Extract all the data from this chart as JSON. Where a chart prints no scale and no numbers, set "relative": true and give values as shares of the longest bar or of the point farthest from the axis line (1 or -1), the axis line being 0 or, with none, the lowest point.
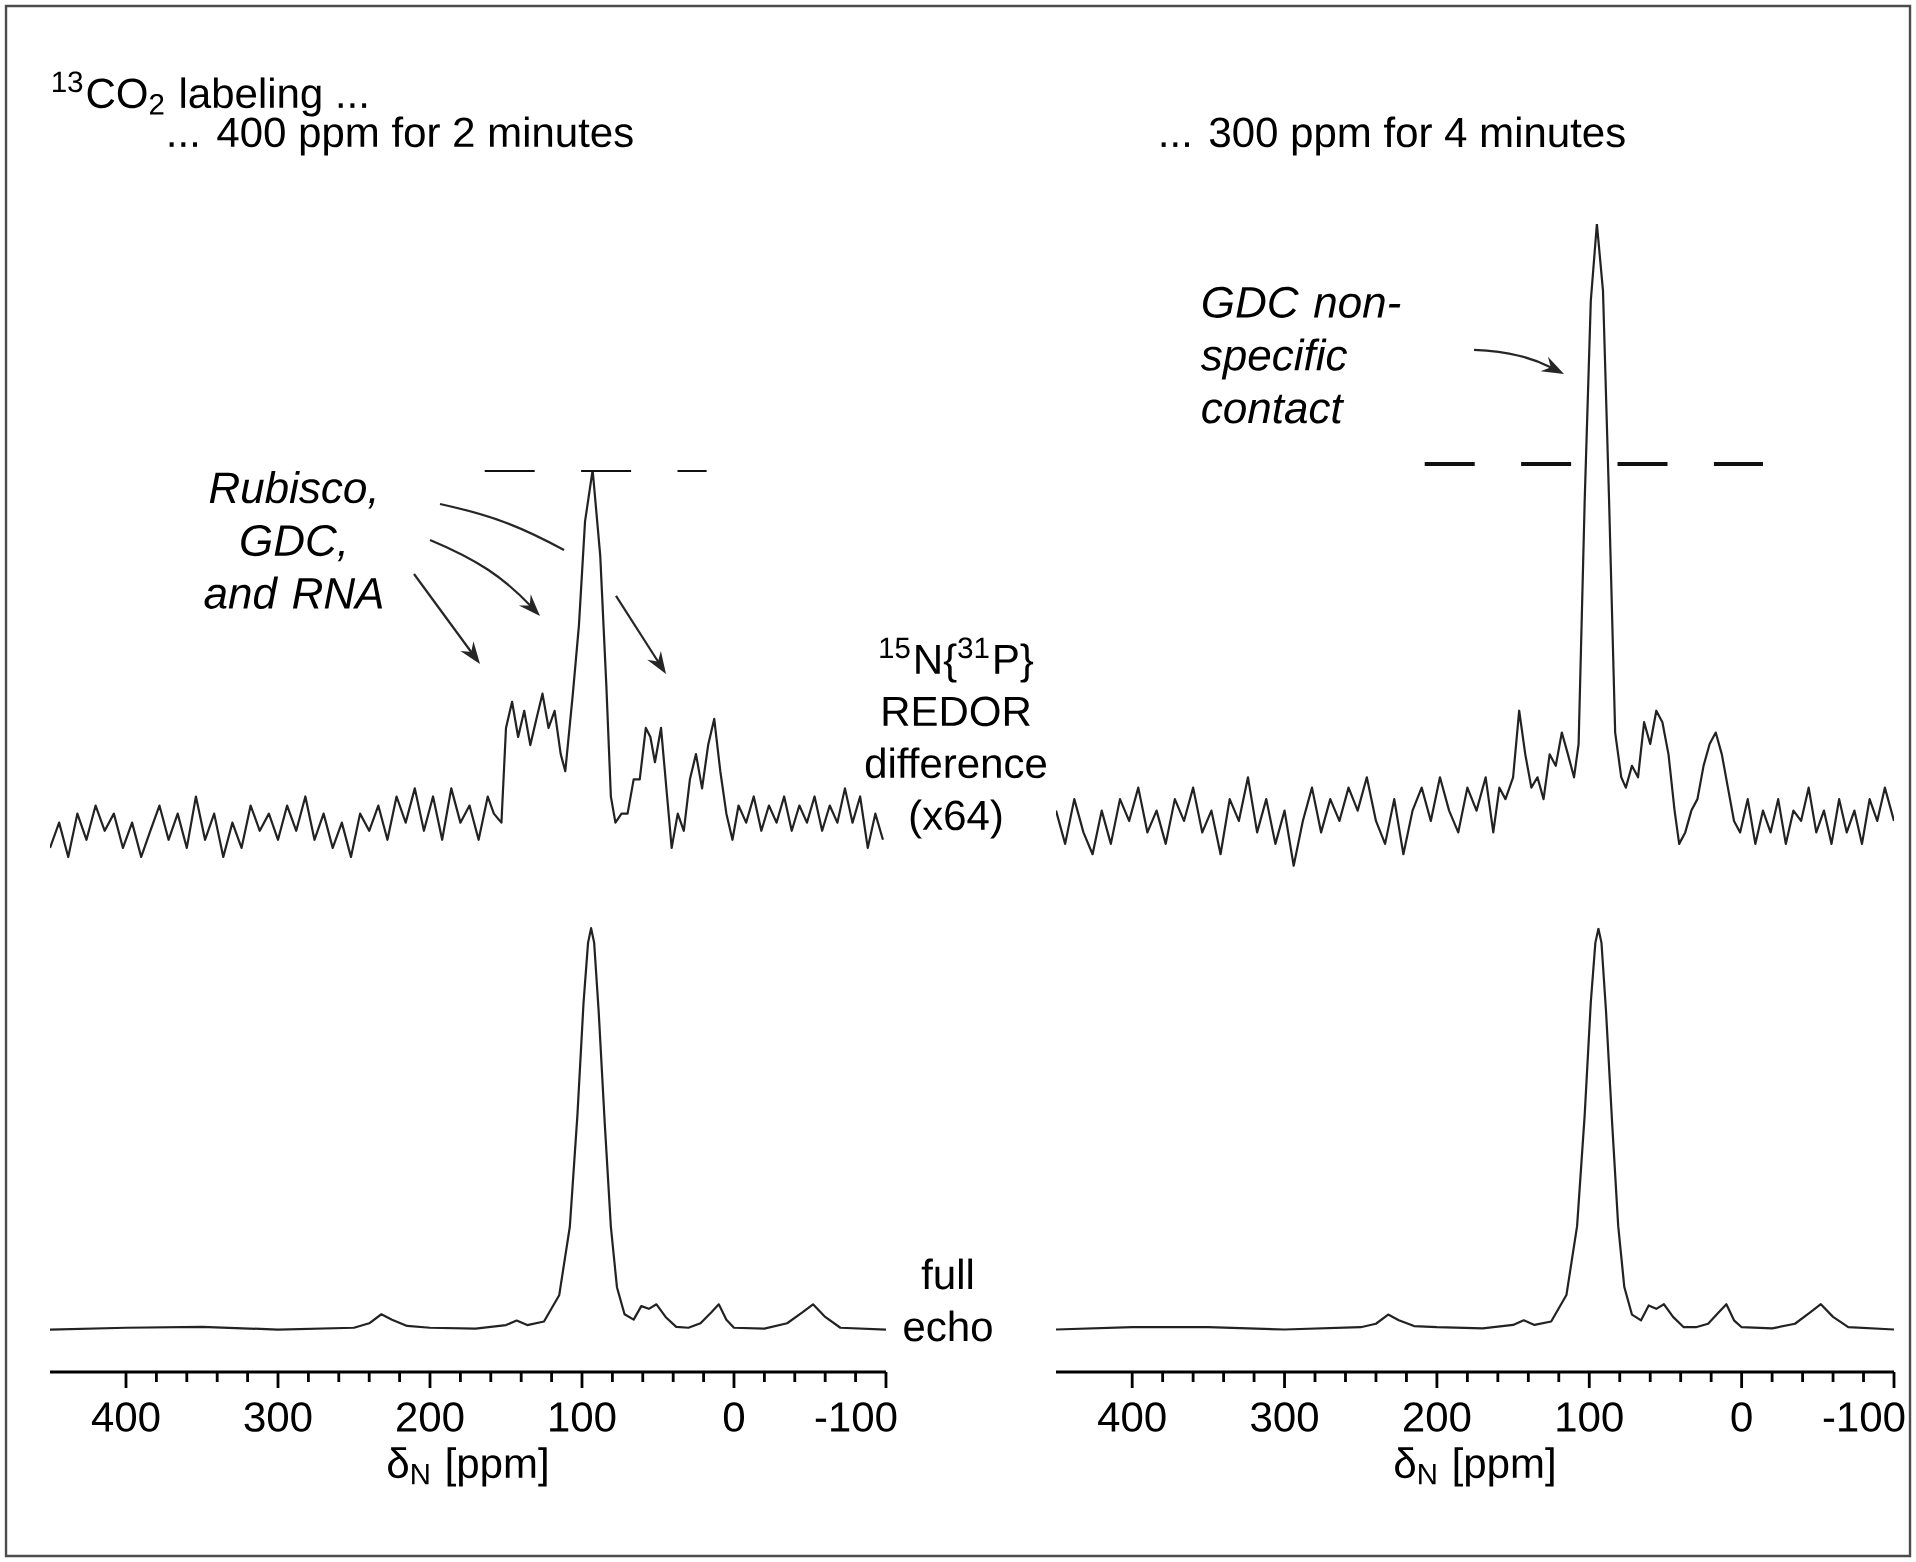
{
  "chart_data": [
    {
      "type": "line",
      "title": "... 400 ppm for 2 minutes",
      "xlabel": "δ$_{N}$ [ppm]",
      "relative": true,
      "xlim": [
        450,
        -100
      ],
      "xticks": [
        400,
        300,
        200,
        100,
        0,
        -100
      ],
      "annotations": [
        "$^{13}$CO$_{2}$ labeling ...",
        "Rubisco, GDC, and RNA",
        "$^{15}$N{$^{31}$P} REDOR difference (x64)",
        "full echo"
      ],
      "series": [
        {
          "color": "#222222",
          "x": [
            450,
            444,
            438,
            432,
            426,
            420,
            414,
            408,
            402,
            396,
            390,
            384,
            378,
            372,
            366,
            360,
            354,
            348,
            342,
            336,
            330,
            324,
            318,
            312,
            306,
            300,
            294,
            288,
            282,
            276,
            270,
            264,
            258,
            252,
            246,
            240,
            234,
            228,
            222,
            216,
            210,
            204,
            198,
            192,
            186,
            180,
            174,
            168,
            162,
            158,
            153,
            150,
            146,
            142,
            138,
            134,
            130,
            126,
            122,
            118,
            114,
            111,
            106,
            102,
            98,
            93,
            88,
            84,
            81,
            78,
            74,
            70,
            66,
            62,
            58,
            55,
            52,
            48,
            44,
            41,
            37,
            33,
            29,
            25,
            21,
            17,
            13,
            9,
            5,
            1,
            -3,
            -8,
            -13,
            -18,
            -23,
            -28,
            -33,
            -38,
            -43,
            -48,
            -53,
            -58,
            -63,
            -68,
            -73,
            -78,
            -83,
            -88,
            -93,
            -98
          ],
          "values": [
            0.581,
            0.609,
            0.571,
            0.619,
            0.59,
            0.628,
            0.6,
            0.619,
            0.581,
            0.609,
            0.571,
            0.6,
            0.628,
            0.59,
            0.619,
            0.581,
            0.638,
            0.59,
            0.619,
            0.571,
            0.609,
            0.581,
            0.628,
            0.6,
            0.619,
            0.59,
            0.628,
            0.6,
            0.638,
            0.59,
            0.619,
            0.581,
            0.609,
            0.571,
            0.619,
            0.6,
            0.628,
            0.59,
            0.638,
            0.609,
            0.647,
            0.6,
            0.638,
            0.59,
            0.647,
            0.609,
            0.628,
            0.59,
            0.638,
            0.619,
            0.609,
            0.714,
            0.743,
            0.704,
            0.733,
            0.695,
            0.724,
            0.752,
            0.714,
            0.733,
            0.685,
            0.666,
            0.752,
            0.828,
            0.943,
            1.0,
            0.905,
            0.762,
            0.638,
            0.609,
            0.619,
            0.619,
            0.657,
            0.657,
            0.714,
            0.704,
            0.676,
            0.714,
            0.638,
            0.581,
            0.619,
            0.6,
            0.657,
            0.685,
            0.647,
            0.695,
            0.724,
            0.666,
            0.619,
            0.59,
            0.628,
            0.609,
            0.638,
            0.6,
            0.628,
            0.609,
            0.638,
            0.6,
            0.628,
            0.609,
            0.638,
            0.6,
            0.628,
            0.609,
            0.647,
            0.609,
            0.638,
            0.581,
            0.619,
            0.59
          ]
        },
        {
          "color": "#222222",
          "x": [
            450,
            400,
            350,
            300,
            250,
            240,
            232,
            225,
            215,
            200,
            170,
            150,
            143,
            136,
            125,
            115,
            108,
            103,
            99,
            96,
            94,
            92,
            89,
            85,
            81,
            77,
            72,
            66,
            61,
            56,
            51,
            45,
            38,
            30,
            22,
            15,
            10,
            5,
            0,
            -20,
            -35,
            -45,
            -52,
            -60,
            -70,
            -100
          ],
          "values": [
            0.047,
            0.049,
            0.05,
            0.047,
            0.049,
            0.054,
            0.064,
            0.058,
            0.051,
            0.049,
            0.048,
            0.052,
            0.057,
            0.052,
            0.056,
            0.085,
            0.161,
            0.285,
            0.409,
            0.476,
            0.492,
            0.476,
            0.399,
            0.275,
            0.161,
            0.094,
            0.064,
            0.058,
            0.073,
            0.07,
            0.075,
            0.061,
            0.05,
            0.049,
            0.054,
            0.066,
            0.075,
            0.058,
            0.049,
            0.048,
            0.054,
            0.066,
            0.075,
            0.061,
            0.049,
            0.047
          ]
        },
        {
          "color": "#111111",
          "line_style": "dashed",
          "x": [
            164,
            18
          ],
          "values": [
            1.0,
            1.0
          ]
        }
      ]
    },
    {
      "type": "line",
      "title": "... 300 ppm for 4 minutes",
      "xlabel": "δ$_{N}$ [ppm]",
      "relative": true,
      "xlim": [
        450,
        -100
      ],
      "xticks": [
        400,
        300,
        200,
        100,
        0,
        -100
      ],
      "annotations": [
        "GDC non-specific contact"
      ],
      "series": [
        {
          "color": "#222222",
          "x": [
            450,
            444,
            438,
            432,
            426,
            420,
            414,
            408,
            402,
            396,
            390,
            384,
            378,
            372,
            366,
            360,
            354,
            348,
            342,
            336,
            330,
            324,
            318,
            312,
            306,
            300,
            294,
            288,
            282,
            276,
            270,
            264,
            258,
            252,
            246,
            240,
            234,
            228,
            222,
            216,
            210,
            204,
            198,
            192,
            186,
            180,
            174,
            168,
            163,
            159,
            155,
            150,
            146,
            142,
            138,
            134,
            130,
            126,
            122,
            118,
            114,
            110,
            107,
            103,
            99,
            95,
            91,
            87,
            83,
            79,
            76,
            72,
            68,
            64,
            60,
            56,
            52,
            48,
            44,
            41,
            37,
            33,
            29,
            25,
            21,
            17,
            13,
            9,
            5,
            1,
            -4,
            -9,
            -14,
            -19,
            -24,
            -29,
            -34,
            -39,
            -44,
            -49,
            -54,
            -59,
            -64,
            -69,
            -74,
            -79,
            -84,
            -89,
            -94,
            -100
          ],
          "values": [
            0.489,
            0.46,
            0.499,
            0.47,
            0.451,
            0.489,
            0.46,
            0.499,
            0.48,
            0.509,
            0.47,
            0.489,
            0.46,
            0.499,
            0.48,
            0.509,
            0.47,
            0.489,
            0.451,
            0.499,
            0.48,
            0.518,
            0.47,
            0.499,
            0.46,
            0.489,
            0.441,
            0.48,
            0.509,
            0.47,
            0.499,
            0.48,
            0.509,
            0.489,
            0.518,
            0.48,
            0.46,
            0.499,
            0.451,
            0.489,
            0.509,
            0.48,
            0.518,
            0.489,
            0.47,
            0.509,
            0.489,
            0.518,
            0.47,
            0.509,
            0.499,
            0.518,
            0.576,
            0.538,
            0.509,
            0.518,
            0.499,
            0.538,
            0.528,
            0.557,
            0.538,
            0.518,
            0.547,
            0.759,
            0.933,
            1.0,
            0.942,
            0.759,
            0.557,
            0.518,
            0.509,
            0.528,
            0.518,
            0.566,
            0.547,
            0.576,
            0.566,
            0.538,
            0.489,
            0.46,
            0.47,
            0.489,
            0.499,
            0.528,
            0.547,
            0.557,
            0.538,
            0.509,
            0.48,
            0.47,
            0.499,
            0.46,
            0.489,
            0.47,
            0.499,
            0.46,
            0.489,
            0.48,
            0.509,
            0.47,
            0.489,
            0.46,
            0.499,
            0.47,
            0.489,
            0.46,
            0.499,
            0.48,
            0.509,
            0.48
          ]
        },
        {
          "color": "#222222",
          "x": [
            450,
            400,
            350,
            300,
            250,
            240,
            232,
            225,
            215,
            200,
            170,
            150,
            143,
            136,
            125,
            115,
            108,
            103,
            99,
            96,
            94,
            92,
            89,
            85,
            81,
            77,
            72,
            66,
            61,
            56,
            51,
            45,
            38,
            30,
            22,
            15,
            10,
            5,
            0,
            -20,
            -35,
            -45,
            -52,
            -60,
            -70,
            -100
          ],
          "values": [
            0.037,
            0.039,
            0.039,
            0.037,
            0.039,
            0.042,
            0.05,
            0.045,
            0.04,
            0.039,
            0.038,
            0.041,
            0.045,
            0.041,
            0.044,
            0.067,
            0.127,
            0.224,
            0.322,
            0.374,
            0.386,
            0.374,
            0.314,
            0.217,
            0.127,
            0.074,
            0.05,
            0.045,
            0.058,
            0.055,
            0.059,
            0.048,
            0.039,
            0.039,
            0.042,
            0.052,
            0.059,
            0.045,
            0.039,
            0.038,
            0.042,
            0.052,
            0.059,
            0.048,
            0.039,
            0.037
          ]
        },
        {
          "color": "#111111",
          "line_style": "dashed",
          "x": [
            208,
            -14
          ],
          "values": [
            0.791,
            0.791
          ]
        }
      ]
    }
  ]
}
